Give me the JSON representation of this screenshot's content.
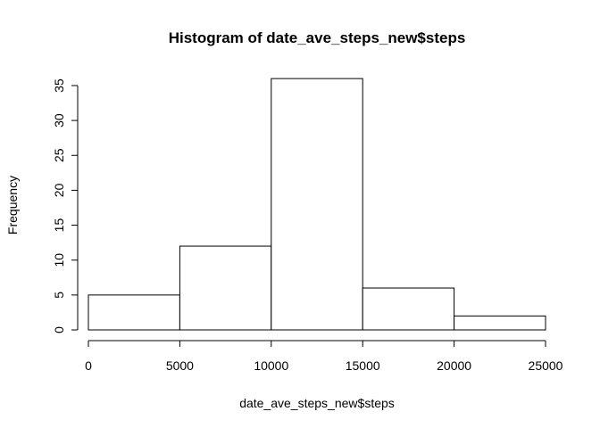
{
  "chart_data": {
    "type": "bar",
    "title": "Histogram of date_ave_steps_new$steps",
    "xlabel": "date_ave_steps_new$steps",
    "ylabel": "Frequency",
    "bins": [
      {
        "from": 0,
        "to": 5000,
        "count": 5
      },
      {
        "from": 5000,
        "to": 10000,
        "count": 12
      },
      {
        "from": 10000,
        "to": 15000,
        "count": 36
      },
      {
        "from": 15000,
        "to": 20000,
        "count": 6
      },
      {
        "from": 20000,
        "to": 25000,
        "count": 2
      }
    ],
    "x_ticks": [
      0,
      5000,
      10000,
      15000,
      20000,
      25000
    ],
    "y_ticks": [
      0,
      5,
      10,
      15,
      20,
      25,
      30,
      35
    ],
    "xlim": [
      0,
      25000
    ],
    "ylim": [
      0,
      36
    ],
    "grid": false,
    "colors": {
      "bar_fill": "#ffffff",
      "bar_stroke": "#000000"
    }
  }
}
